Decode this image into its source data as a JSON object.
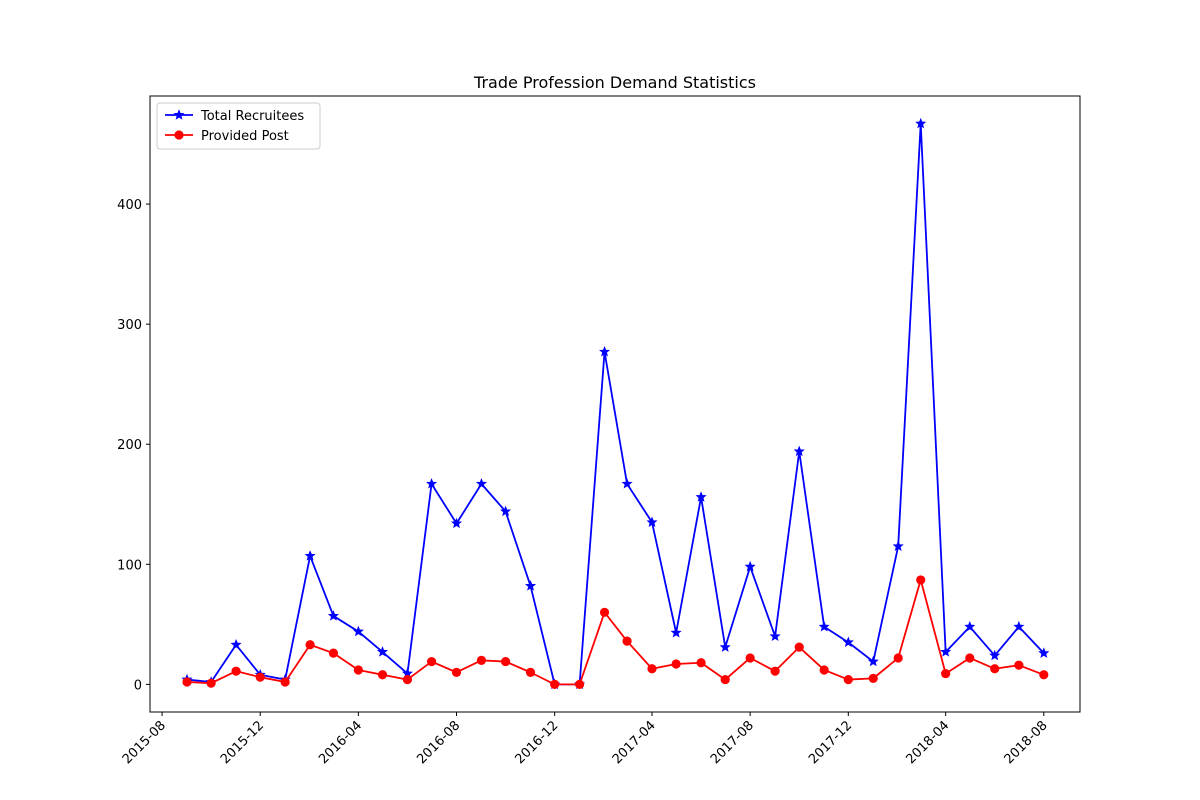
{
  "chart_data": {
    "type": "line",
    "title": "Trade Profession Demand Statistics",
    "xlabel": "",
    "ylabel": "",
    "x": [
      "2015-09",
      "2015-10",
      "2015-11",
      "2015-12",
      "2016-01",
      "2016-02",
      "2016-03",
      "2016-04",
      "2016-05",
      "2016-06",
      "2016-07",
      "2016-08",
      "2016-09",
      "2016-10",
      "2016-11",
      "2016-12",
      "2017-01",
      "2017-02",
      "2017-03",
      "2017-04",
      "2017-05",
      "2017-06",
      "2017-07",
      "2017-08",
      "2017-09",
      "2017-10",
      "2017-11",
      "2017-12",
      "2018-01",
      "2018-02",
      "2018-03",
      "2018-04",
      "2018-05",
      "2018-06",
      "2018-07",
      "2018-08"
    ],
    "x_tick_labels": [
      "2015-08",
      "2015-12",
      "2016-04",
      "2016-08",
      "2016-12",
      "2017-04",
      "2017-08",
      "2017-12",
      "2018-04",
      "2018-08"
    ],
    "y_ticks": [
      0,
      100,
      200,
      300,
      400
    ],
    "ylim": [
      -23,
      490
    ],
    "xlim": [
      "2015-07-17",
      "2018-09-15"
    ],
    "grid": false,
    "legend_position": "upper-left",
    "series": [
      {
        "name": "Total Recruitees",
        "color": "#0000ff",
        "marker": "star",
        "values": [
          4,
          2,
          33,
          8,
          4,
          107,
          57,
          44,
          27,
          9,
          167,
          134,
          167,
          144,
          82,
          0,
          0,
          277,
          167,
          135,
          43,
          156,
          31,
          98,
          40,
          194,
          48,
          35,
          19,
          115,
          467,
          27,
          48,
          24,
          48,
          26
        ]
      },
      {
        "name": "Provided Post",
        "color": "#ff0000",
        "marker": "circle",
        "values": [
          2,
          1,
          11,
          6,
          2,
          33,
          26,
          12,
          8,
          4,
          19,
          10,
          20,
          19,
          10,
          0,
          0,
          60,
          36,
          13,
          17,
          18,
          4,
          22,
          11,
          31,
          12,
          4,
          5,
          22,
          87,
          9,
          22,
          13,
          16,
          8
        ]
      }
    ]
  }
}
